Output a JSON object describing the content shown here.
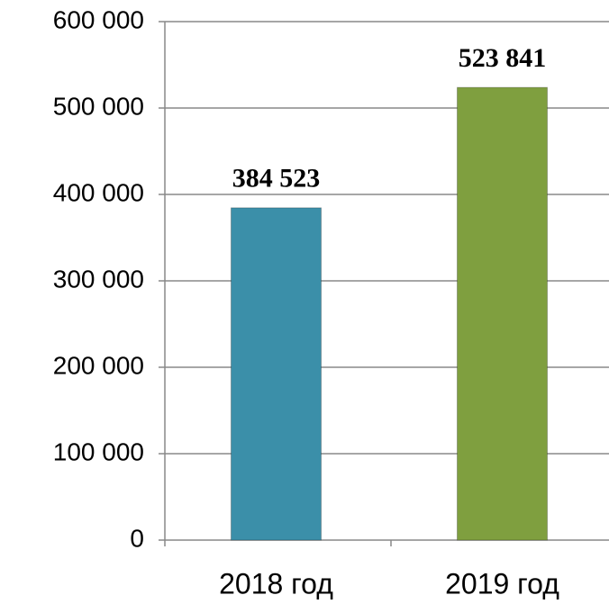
{
  "chart_data": {
    "type": "bar",
    "categories": [
      "2018 год",
      "2019 год"
    ],
    "values": [
      384523,
      523841
    ],
    "value_labels": [
      "384 523",
      "523 841"
    ],
    "colors": [
      "#3b8fa9",
      "#7f9f3f"
    ],
    "ylim": [
      0,
      600000
    ],
    "yticks": [
      0,
      {
        "value": 100000,
        "label": "100 000"
      },
      {
        "value": 200000,
        "label": "200 000"
      },
      {
        "value": 300000,
        "label": "300 000"
      },
      {
        "value": 400000,
        "label": "400 000"
      },
      {
        "value": 500000,
        "label": "500 000"
      },
      {
        "value": 600000,
        "label": "600 000"
      }
    ],
    "grid": true
  }
}
